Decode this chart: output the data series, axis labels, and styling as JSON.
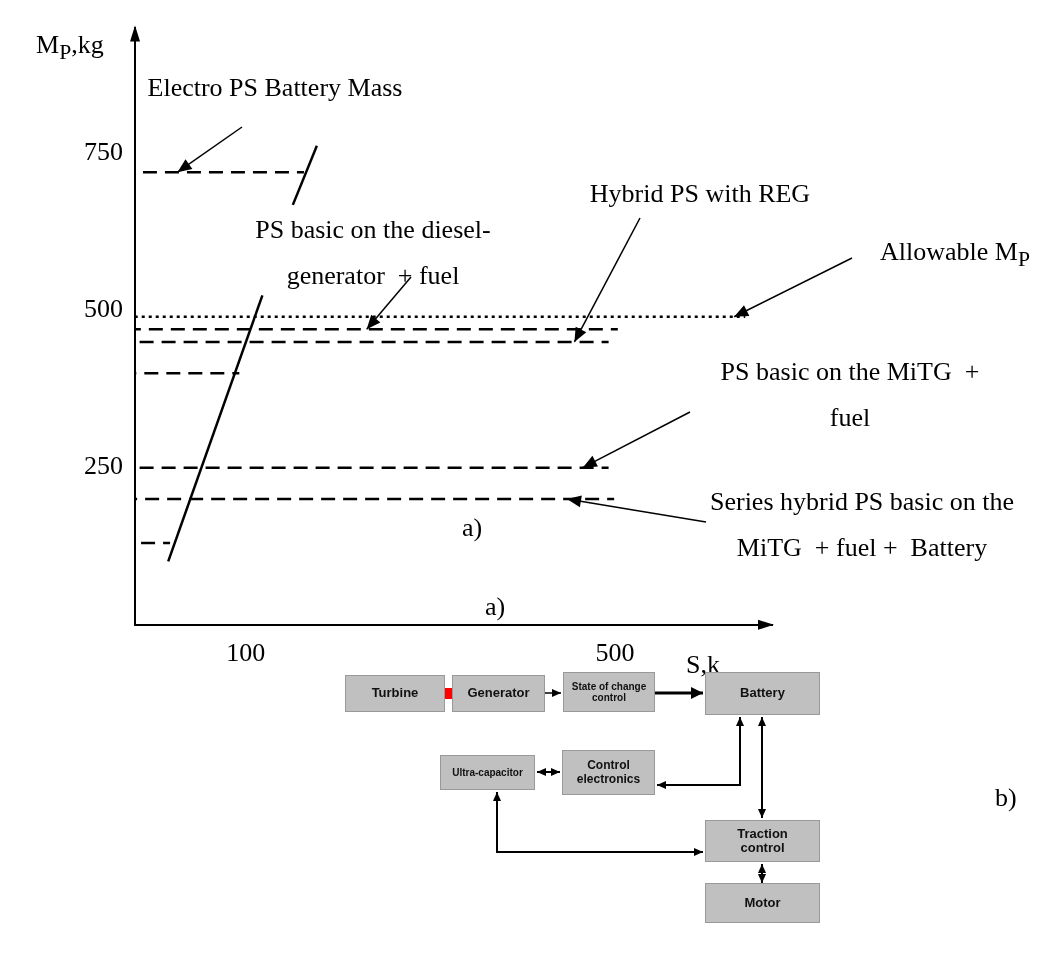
{
  "chart_data": [
    {
      "type": "line",
      "ylabel": "M$_{P}$,kg",
      "xlabel": "S,k",
      "xlim": [
        -20,
        670
      ],
      "xticks": [
        100,
        500
      ],
      "ylim": [
        0,
        950
      ],
      "yticks": [
        250,
        500,
        750
      ],
      "grid": false,
      "legend": false,
      "marker": "none",
      "series": [
        {
          "color": "#000000",
          "line_style": "dashed",
          "x": [
            -20,
            163
          ],
          "values": [
            720,
            720
          ]
        },
        {
          "color": "#000000",
          "line_style": "dotted",
          "x": [
            -20,
            641
          ],
          "values": [
            490,
            490
          ]
        },
        {
          "color": "#000000",
          "line_style": "dashed",
          "x": [
            -20,
            503
          ],
          "values": [
            470,
            470
          ]
        },
        {
          "color": "#000000",
          "line_style": "dashed",
          "x": [
            -20,
            493
          ],
          "values": [
            450,
            450
          ]
        },
        {
          "color": "#000000",
          "line_style": "dashed",
          "x": [
            -20,
            93
          ],
          "values": [
            400,
            400
          ]
        },
        {
          "color": "#000000",
          "line_style": "dashed",
          "x": [
            -20,
            493
          ],
          "values": [
            250,
            250
          ]
        },
        {
          "color": "#000000",
          "line_style": "dashed",
          "x": [
            -20,
            499
          ],
          "values": [
            200,
            200
          ]
        },
        {
          "color": "#000000",
          "line_style": "dashed",
          "x": [
            -20,
            18
          ],
          "values": [
            130,
            130
          ]
        },
        {
          "color": "#000000",
          "line_style": "solid",
          "x": [
            16,
            118
          ],
          "values": [
            101,
            524
          ]
        },
        {
          "color": "#000000",
          "line_style": "solid",
          "x": [
            151,
            177
          ],
          "values": [
            668,
            762
          ]
        }
      ],
      "annotations": [
        {
          "text": "Electro PS Battery Mass",
          "x": 26,
          "y": 720
        },
        {
          "text": "PS basic on the diesel-generator  + fuel",
          "x": 231,
          "y": 470
        },
        {
          "text": "Hybrid PS with REG",
          "x": 456,
          "y": 450
        },
        {
          "text": "Allowable M$_{P}$",
          "x": 629,
          "y": 490
        },
        {
          "text": "PS basic on the MiTG  + fuel",
          "x": 465,
          "y": 250
        },
        {
          "text": "Series hybrid PS basic on the MiTG  + fuel +  Battery",
          "x": 448,
          "y": 200
        },
        "a)",
        "a)"
      ]
    },
    {
      "type": "other",
      "annotations": [
        "Turbine",
        "Generator",
        "State of change control",
        "Battery",
        "Ultra-capacitor",
        "Control electronics",
        "Traction control",
        "Motor",
        "b)"
      ]
    }
  ]
}
